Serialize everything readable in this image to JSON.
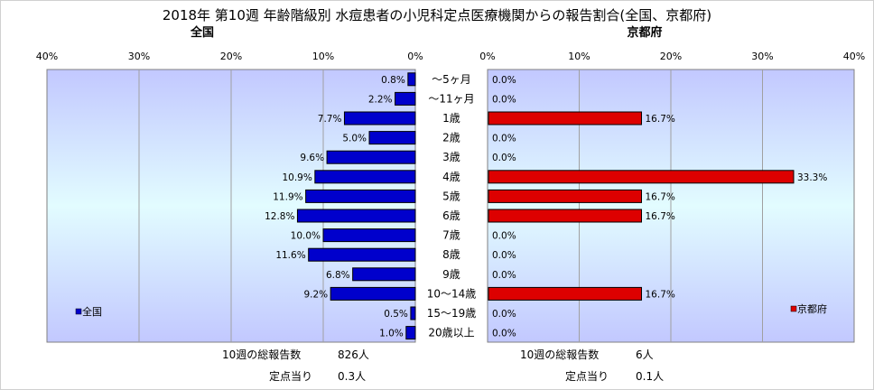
{
  "title": "2018年 第10週 年齢階級別 水痘患者の小児科定点医療機関からの報告割合(全国、京都府)",
  "chart_data": {
    "type": "bar",
    "orientation": "horizontal-butterfly",
    "categories": [
      "～5ヶ月",
      "～11ヶ月",
      "1歳",
      "2歳",
      "3歳",
      "4歳",
      "5歳",
      "6歳",
      "7歳",
      "8歳",
      "9歳",
      "10～14歳",
      "15～19歳",
      "20歳以上"
    ],
    "series": [
      {
        "name": "全国",
        "panel_title": "全国",
        "color": "#0000cc",
        "values": [
          0.8,
          2.2,
          7.7,
          5.0,
          9.6,
          10.9,
          11.9,
          12.8,
          10.0,
          11.6,
          6.8,
          9.2,
          0.5,
          1.0
        ],
        "labels": [
          "0.8%",
          "2.2%",
          "7.7%",
          "5.0%",
          "9.6%",
          "10.9%",
          "11.9%",
          "12.8%",
          "10.0%",
          "11.6%",
          "6.8%",
          "9.2%",
          "0.5%",
          "1.0%"
        ],
        "xlim": [
          40,
          0
        ],
        "ticks": [
          "40%",
          "30%",
          "20%",
          "10%",
          "0%"
        ],
        "legend": "全国",
        "legend_position": "bottom-left"
      },
      {
        "name": "京都府",
        "panel_title": "京都府",
        "color": "#dd0000",
        "values": [
          0,
          0,
          16.7,
          0,
          0,
          33.3,
          16.7,
          16.7,
          0,
          0,
          0,
          16.7,
          0,
          0
        ],
        "labels": [
          "0.0%",
          "0.0%",
          "16.7%",
          "0.0%",
          "0.0%",
          "33.3%",
          "16.7%",
          "16.7%",
          "0.0%",
          "0.0%",
          "0.0%",
          "16.7%",
          "0.0%",
          "0.0%"
        ],
        "xlim": [
          0,
          40
        ],
        "ticks": [
          "0%",
          "10%",
          "20%",
          "30%",
          "40%"
        ],
        "legend": "京都府",
        "legend_position": "bottom-right"
      }
    ],
    "grid": true
  },
  "footer": {
    "left": {
      "total_label": "10週の総報告数",
      "total_value": "826人",
      "per_label": "定点当り",
      "per_value": "0.3人"
    },
    "right": {
      "total_label": "10週の総報告数",
      "total_value": "6人",
      "per_label": "定点当り",
      "per_value": "0.1人"
    }
  }
}
